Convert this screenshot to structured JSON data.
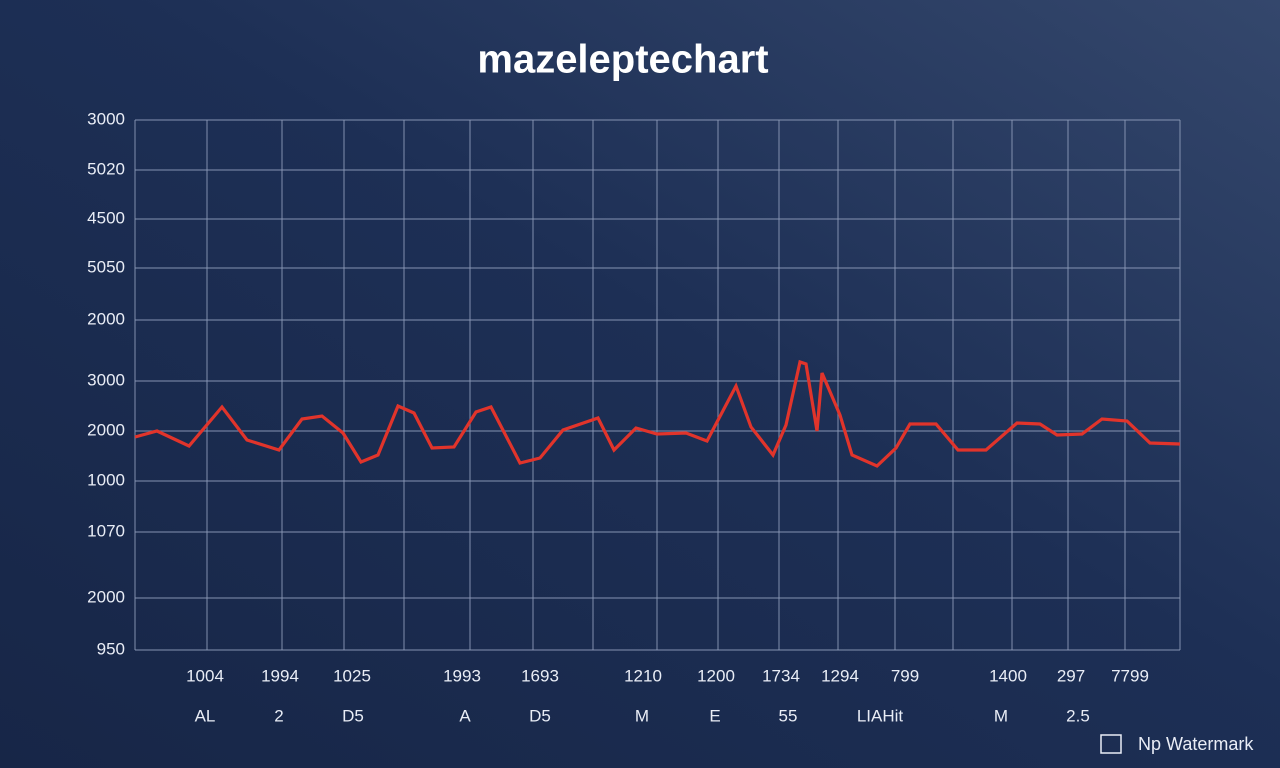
{
  "chart_data": {
    "type": "line",
    "title": "mazeleptechart",
    "watermark": "Np Watermark",
    "color": "#e1342b",
    "grid": true,
    "xlim": [
      0,
      1045
    ],
    "ylim": [
      -2380,
      8220
    ],
    "yticks": [
      {
        "value": 8220,
        "label": "3000"
      },
      {
        "value": 7220,
        "label": "5020"
      },
      {
        "value": 6240,
        "label": "4500"
      },
      {
        "value": 5260,
        "label": "5050"
      },
      {
        "value": 4220,
        "label": "2000"
      },
      3000,
      2000,
      1000,
      {
        "value": -20,
        "label": "1070"
      },
      {
        "value": -1340,
        "label": "2000"
      },
      {
        "value": -2380,
        "label": "950"
      }
    ],
    "xgrid": [
      72,
      147,
      209,
      269,
      335,
      398,
      458,
      522,
      583,
      644,
      703,
      760,
      818,
      877,
      933,
      990
    ],
    "xticks": [
      {
        "value": 70,
        "label": "1004"
      },
      {
        "value": 145,
        "label": "1994"
      },
      {
        "value": 217,
        "label": "1025"
      },
      {
        "value": 327,
        "label": "1993"
      },
      {
        "value": 405,
        "label": "1693"
      },
      {
        "value": 508,
        "label": "1210"
      },
      {
        "value": 581,
        "label": "1200"
      },
      {
        "value": 646,
        "label": "1734"
      },
      {
        "value": 705,
        "label": "1294"
      },
      {
        "value": 770,
        "label": "799"
      },
      {
        "value": 873,
        "label": "1400"
      },
      {
        "value": 936,
        "label": "297"
      },
      {
        "value": 995,
        "label": "7799"
      }
    ],
    "xsublabels": [
      {
        "value": 70,
        "label": "AL"
      },
      {
        "value": 144,
        "label": "2"
      },
      {
        "value": 218,
        "label": "D5"
      },
      {
        "value": 330,
        "label": "A"
      },
      {
        "value": 405,
        "label": "D5"
      },
      {
        "value": 507,
        "label": "M"
      },
      {
        "value": 580,
        "label": "E"
      },
      {
        "value": 653,
        "label": "55"
      },
      {
        "value": 745,
        "label": "LIAHit"
      },
      {
        "value": 866,
        "label": "M"
      },
      {
        "value": 943,
        "label": "2.5"
      }
    ],
    "x": [
      0,
      22,
      54,
      87,
      112,
      144,
      167,
      187,
      208,
      226,
      243,
      263,
      279,
      297,
      319,
      341,
      356,
      385,
      405,
      428,
      463,
      479,
      501,
      522,
      551,
      572,
      601,
      616,
      638,
      651,
      665,
      671,
      682,
      687,
      705,
      717,
      742,
      761,
      775,
      801,
      823,
      851,
      882,
      905,
      922,
      947,
      967,
      992,
      1015,
      1045
    ],
    "values": [
      1880,
      2000,
      1700,
      2480,
      1820,
      1620,
      2240,
      2300,
      1960,
      1380,
      1520,
      2500,
      2360,
      1660,
      1680,
      2380,
      2480,
      1360,
      1460,
      2020,
      2260,
      1620,
      2060,
      1940,
      1960,
      1800,
      2900,
      2080,
      1520,
      2120,
      3380,
      3340,
      2000,
      3160,
      2320,
      1520,
      1300,
      1660,
      2140,
      2140,
      1620,
      1620,
      2160,
      2140,
      1920,
      1940,
      2240,
      2200,
      1760,
      1740
    ]
  }
}
